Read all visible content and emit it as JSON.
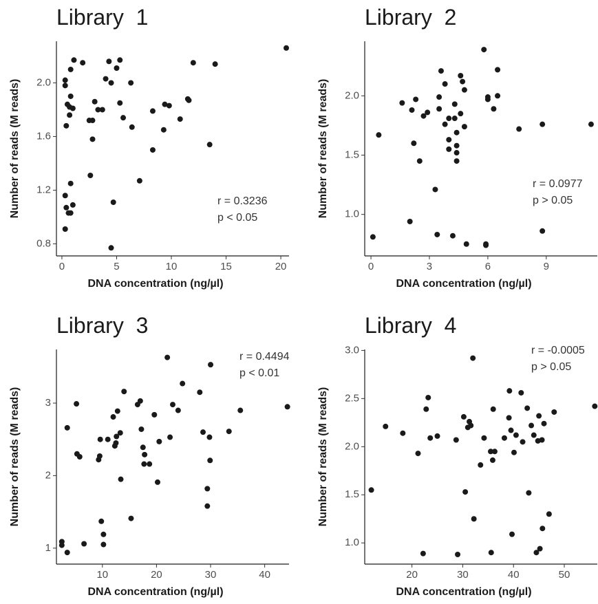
{
  "chart_data": [
    {
      "type": "scatter",
      "title": "Library  1",
      "x_label": "DNA concentration (ng/µl)",
      "y_label": "Number of reads (M reads)",
      "annotations": [
        "r = 0.3236",
        "p < 0.05"
      ],
      "color": "#1a1a1a",
      "xlim": [
        -0.5,
        20.75
      ],
      "ylim": [
        0.71,
        2.31
      ],
      "xticks": [
        0,
        5,
        10,
        15,
        20
      ],
      "yticks": [
        {
          "value": 0.8,
          "label": "0.8"
        },
        {
          "value": 1.2,
          "label": "1.2"
        },
        {
          "value": 1.6,
          "label": "1.6"
        },
        {
          "value": 2,
          "label": "2.0"
        }
      ],
      "x": [
        0.3,
        0.3,
        0.5,
        0.4,
        0.7,
        0.8,
        0.8,
        1.1,
        1.0,
        0.7,
        0.3,
        0.4,
        0.6,
        0.8,
        1.0,
        0.8,
        0.3,
        1.9,
        2.5,
        2.8,
        2.8,
        3.0,
        3.3,
        3.7,
        2.6,
        4.0,
        4.3,
        4.5,
        5.0,
        5.3,
        5.3,
        5.6,
        4.7,
        4.5,
        6.3,
        6.4,
        7.1,
        8.3,
        8.3,
        9.3,
        9.4,
        9.8,
        10.8,
        11.5,
        11.6,
        12.0,
        14.0,
        13.5,
        20.5
      ],
      "values": [
        2.02,
        1.98,
        1.84,
        1.68,
        1.76,
        1.9,
        2.1,
        2.17,
        1.81,
        1.82,
        1.16,
        1.07,
        1.03,
        1.03,
        1.09,
        1.25,
        0.91,
        2.15,
        1.72,
        1.72,
        1.58,
        1.86,
        1.8,
        1.8,
        1.31,
        2.03,
        2.16,
        2.0,
        2.11,
        2.17,
        1.85,
        1.74,
        1.11,
        0.77,
        2.0,
        1.67,
        1.27,
        1.79,
        1.5,
        1.65,
        1.84,
        1.83,
        1.73,
        1.88,
        1.87,
        2.15,
        2.14,
        1.54,
        2.26
      ]
    },
    {
      "type": "scatter",
      "title": "Library  2",
      "x_label": "DNA concentration (ng/µl)",
      "y_label": "Number of reads (M reads)",
      "annotations": [
        "r = 0.0977",
        "p > 0.05"
      ],
      "color": "#1a1a1a",
      "xlim": [
        -0.32,
        11.62
      ],
      "ylim": [
        0.65,
        2.46
      ],
      "xticks": [
        0,
        3,
        6,
        9
      ],
      "yticks": [
        {
          "value": 1,
          "label": "1.0"
        },
        1.5,
        {
          "value": 2,
          "label": "2.0"
        }
      ],
      "x": [
        0.1,
        0.4,
        1.6,
        2.0,
        2.1,
        2.2,
        2.3,
        2.5,
        2.7,
        2.9,
        3.3,
        3.4,
        3.5,
        3.5,
        3.6,
        3.8,
        3.8,
        4.0,
        4.0,
        4.0,
        4.2,
        4.3,
        4.3,
        4.4,
        4.4,
        4.4,
        4.4,
        4.6,
        4.6,
        4.7,
        4.8,
        4.8,
        4.9,
        5.8,
        5.9,
        5.9,
        6.0,
        6.0,
        6.3,
        6.5,
        6.5,
        7.6,
        8.8,
        8.8,
        11.3
      ],
      "values": [
        0.81,
        1.67,
        1.94,
        0.94,
        1.88,
        1.6,
        1.97,
        1.45,
        1.83,
        1.86,
        1.21,
        0.83,
        1.99,
        1.89,
        2.21,
        2.1,
        1.76,
        1.81,
        1.63,
        1.55,
        0.82,
        1.93,
        1.81,
        1.69,
        1.58,
        1.52,
        1.45,
        2.17,
        1.85,
        2.12,
        2.05,
        1.74,
        0.75,
        2.39,
        0.75,
        0.74,
        1.97,
        1.99,
        1.89,
        2.22,
        2.0,
        1.72,
        1.76,
        0.86,
        1.76
      ]
    },
    {
      "type": "scatter",
      "title": "Library  3",
      "x_label": "DNA concentration (ng/µl)",
      "y_label": "Number of reads (M reads)",
      "annotations": [
        "r = 0.4494",
        "p < 0.01"
      ],
      "color": "#1a1a1a",
      "xlim": [
        1.5,
        44.5
      ],
      "ylim": [
        0.78,
        3.74
      ],
      "xticks": [
        10,
        20,
        30,
        40
      ],
      "yticks": [
        1,
        2,
        3
      ],
      "x": [
        2.5,
        2.5,
        3.5,
        3.5,
        5.2,
        5.3,
        5.8,
        6.6,
        9.3,
        9.5,
        9.6,
        9.8,
        10.2,
        10.2,
        11.0,
        12.0,
        12.3,
        12.5,
        12.6,
        12.8,
        13.3,
        13.4,
        14.0,
        15.3,
        16.5,
        17.0,
        17.2,
        17.5,
        17.8,
        17.7,
        18.7,
        19.6,
        20.2,
        20.5,
        22.0,
        22.5,
        23.0,
        24.0,
        24.8,
        28.0,
        28.6,
        29.4,
        29.4,
        29.8,
        29.9,
        30.0,
        33.4,
        35.5,
        44.2
      ],
      "values": [
        1.09,
        1.04,
        0.94,
        2.66,
        2.99,
        2.3,
        2.26,
        1.06,
        2.22,
        2.27,
        2.5,
        1.37,
        1.19,
        1.05,
        2.5,
        2.81,
        2.41,
        2.45,
        2.54,
        2.89,
        2.59,
        1.95,
        3.16,
        1.41,
        2.98,
        3.03,
        2.64,
        2.39,
        2.29,
        2.16,
        2.16,
        2.84,
        1.91,
        2.47,
        3.63,
        2.53,
        2.98,
        2.9,
        3.27,
        3.15,
        2.6,
        1.82,
        1.58,
        2.53,
        2.21,
        3.53,
        2.61,
        2.9,
        2.95
      ]
    },
    {
      "type": "scatter",
      "title": "Library  4",
      "x_label": "DNA concentration (ng/µl)",
      "y_label": "Number of reads (M reads)",
      "annotations": [
        "r = -0.0005",
        "p > 0.05"
      ],
      "color": "#1a1a1a",
      "xlim": [
        10.7,
        56.5
      ],
      "ylim": [
        0.78,
        3.01
      ],
      "xticks": [
        20,
        30,
        40,
        50
      ],
      "yticks": [
        {
          "value": 1,
          "label": "1.0"
        },
        1.5,
        {
          "value": 2,
          "label": "2.0"
        },
        2.5,
        {
          "value": 3,
          "label": "3.0"
        }
      ],
      "x": [
        12,
        14.8,
        18.2,
        21.2,
        22.2,
        22.8,
        23.2,
        23.6,
        25,
        28.7,
        29,
        30.2,
        30.5,
        31,
        31.3,
        31.6,
        32,
        32.2,
        33.5,
        34.2,
        35.5,
        35.6,
        35.9,
        36,
        36.3,
        38.2,
        39.1,
        39.2,
        39.5,
        39.7,
        40.1,
        40.5,
        41.5,
        41.8,
        42.7,
        43,
        43.5,
        44,
        44.5,
        44.8,
        45,
        45.2,
        45.6,
        45.7,
        46,
        47,
        48,
        56
      ],
      "values": [
        1.55,
        2.21,
        2.14,
        1.93,
        0.89,
        2.39,
        2.51,
        2.09,
        2.11,
        2.07,
        0.88,
        2.31,
        1.53,
        2.2,
        2.26,
        2.22,
        2.92,
        1.25,
        1.81,
        2.09,
        1.95,
        0.9,
        1.86,
        2.39,
        1.95,
        2.09,
        2.3,
        2.58,
        2.17,
        1.09,
        1.94,
        2.12,
        2.56,
        2.05,
        2.4,
        1.52,
        2.22,
        2.12,
        0.9,
        2.06,
        2.32,
        0.94,
        2.07,
        1.15,
        2.24,
        1.3,
        2.36,
        2.42
      ]
    }
  ]
}
